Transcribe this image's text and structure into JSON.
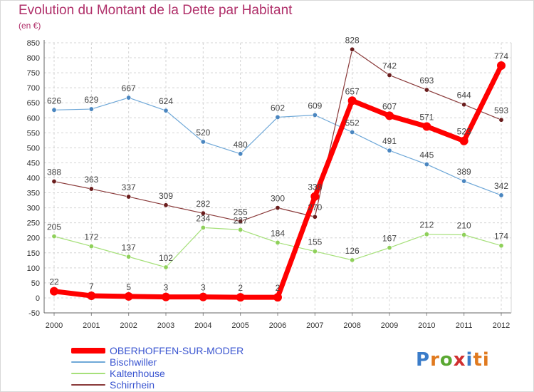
{
  "chart_data": {
    "type": "line",
    "title": "Evolution du Montant de la Dette par Habitant",
    "subtitle": "(en €)",
    "x": [
      2000,
      2001,
      2002,
      2003,
      2004,
      2005,
      2006,
      2007,
      2008,
      2009,
      2010,
      2011,
      2012
    ],
    "ylim": [
      -50,
      850
    ],
    "yticks": [
      -50,
      0,
      50,
      100,
      150,
      200,
      250,
      300,
      350,
      400,
      450,
      500,
      550,
      600,
      650,
      700,
      750,
      800,
      850
    ],
    "grid": true,
    "legend_position": "bottom-left",
    "series": [
      {
        "name": "OBERHOFFEN-SUR-MODER",
        "color": "#ff0000",
        "point_color": "#ff0000",
        "bold": true,
        "values": [
          22,
          7,
          5,
          3,
          3,
          2,
          2,
          338,
          657,
          607,
          571,
          523,
          774
        ]
      },
      {
        "name": "Bischwiller",
        "color": "#6fa8d8",
        "point_color": "#4a86c0",
        "bold": false,
        "values": [
          626,
          629,
          667,
          624,
          520,
          480,
          602,
          609,
          552,
          491,
          445,
          389,
          342
        ]
      },
      {
        "name": "Kaltenhouse",
        "color": "#a6e07a",
        "point_color": "#8fd05a",
        "bold": false,
        "values": [
          205,
          172,
          137,
          102,
          234,
          227,
          184,
          155,
          126,
          167,
          212,
          210,
          174
        ]
      },
      {
        "name": "Schirrhein",
        "color": "#8a3a3a",
        "point_color": "#6a1d1d",
        "bold": false,
        "values": [
          388,
          363,
          337,
          309,
          282,
          255,
          300,
          270,
          828,
          742,
          693,
          644,
          593
        ]
      }
    ]
  },
  "logo": {
    "text": "Proxiti",
    "letters": [
      "P",
      "r",
      "o",
      "x",
      "i",
      "ti"
    ]
  }
}
